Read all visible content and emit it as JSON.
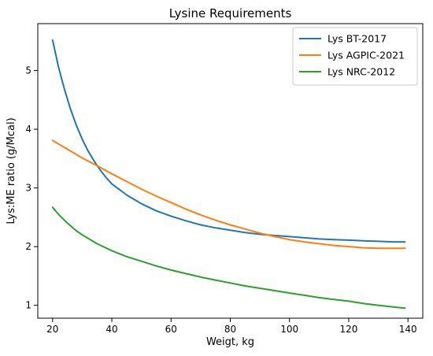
{
  "chart_data": {
    "type": "line",
    "title": "Lysine Requirements",
    "xlabel": "Weigt, kg",
    "ylabel": "Lys:ME ratio (g/Mcal)",
    "xlim": [
      15,
      145
    ],
    "ylim": [
      0.78,
      5.8
    ],
    "x_ticks": [
      20,
      40,
      60,
      80,
      100,
      120,
      140
    ],
    "y_ticks": [
      1,
      2,
      3,
      4,
      5
    ],
    "grid": false,
    "legend_position": "top-right",
    "series": [
      {
        "name": "Lys BT-2017",
        "color": "#1f77b4",
        "x": [
          20,
          22,
          24,
          26,
          28,
          30,
          32,
          34,
          36,
          38,
          40,
          45,
          50,
          55,
          60,
          65,
          70,
          75,
          80,
          85,
          90,
          95,
          100,
          105,
          110,
          115,
          120,
          125,
          130,
          135,
          139
        ],
        "y": [
          5.52,
          5.06,
          4.68,
          4.35,
          4.07,
          3.83,
          3.63,
          3.46,
          3.31,
          3.18,
          3.07,
          2.88,
          2.73,
          2.61,
          2.52,
          2.44,
          2.37,
          2.32,
          2.28,
          2.24,
          2.21,
          2.19,
          2.17,
          2.15,
          2.13,
          2.12,
          2.11,
          2.1,
          2.09,
          2.08,
          2.08
        ]
      },
      {
        "name": "Lys AGPIC-2021",
        "color": "#ff7f0e",
        "x": [
          20,
          25,
          30,
          35,
          40,
          45,
          50,
          55,
          60,
          65,
          70,
          75,
          80,
          85,
          90,
          95,
          100,
          105,
          110,
          115,
          120,
          125,
          130,
          135,
          139
        ],
        "y": [
          3.81,
          3.66,
          3.51,
          3.38,
          3.24,
          3.11,
          2.98,
          2.86,
          2.75,
          2.64,
          2.54,
          2.45,
          2.37,
          2.3,
          2.23,
          2.17,
          2.12,
          2.08,
          2.05,
          2.02,
          2.0,
          1.98,
          1.97,
          1.97,
          1.97
        ]
      },
      {
        "name": "Lys NRC-2012",
        "color": "#2ca02c",
        "x": [
          20,
          22,
          25,
          28,
          30,
          35,
          40,
          45,
          50,
          55,
          60,
          65,
          70,
          75,
          80,
          85,
          90,
          95,
          100,
          105,
          110,
          115,
          120,
          125,
          130,
          135,
          139
        ],
        "y": [
          2.67,
          2.55,
          2.4,
          2.27,
          2.2,
          2.05,
          1.93,
          1.83,
          1.75,
          1.67,
          1.6,
          1.54,
          1.48,
          1.43,
          1.38,
          1.33,
          1.29,
          1.25,
          1.21,
          1.17,
          1.13,
          1.1,
          1.07,
          1.03,
          1.0,
          0.97,
          0.95
        ]
      }
    ]
  }
}
